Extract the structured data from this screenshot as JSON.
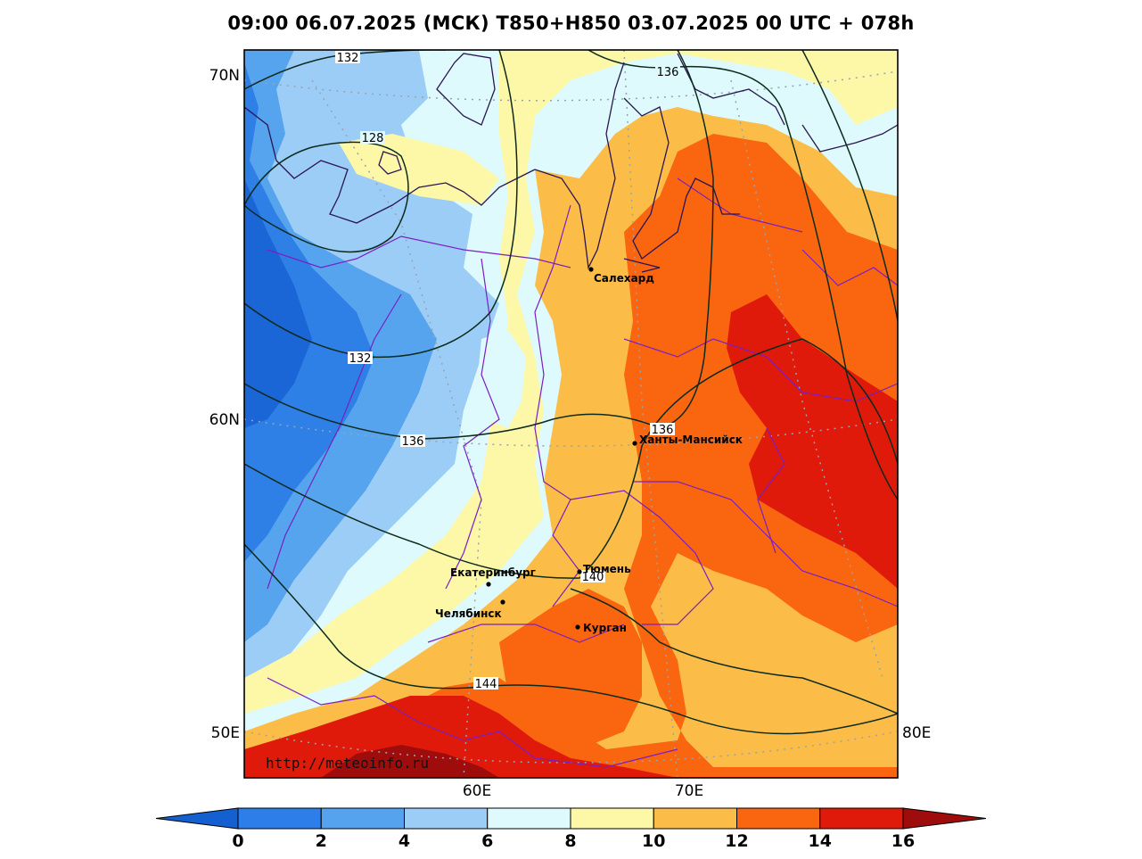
{
  "title": "09:00 06.07.2025 (МСК) T850+H850 03.07.2025 00 UTC + 078h",
  "watermark": "http://meteoinfo.ru",
  "lat_labels": [
    "70N",
    "60N",
    "50E"
  ],
  "lon_labels": [
    "60E",
    "70E",
    "80E"
  ],
  "contour_labels": [
    "132",
    "136",
    "128",
    "132",
    "136",
    "136",
    "140",
    "144"
  ],
  "cities": [
    {
      "name": "Салехард"
    },
    {
      "name": "Ханты-Мансийск"
    },
    {
      "name": "Екатеринбург"
    },
    {
      "name": "Тюмень"
    },
    {
      "name": "Челябинск"
    },
    {
      "name": "Курган"
    }
  ],
  "colorbar": {
    "ticks": [
      "0",
      "2",
      "4",
      "6",
      "8",
      "10",
      "12",
      "14",
      "16"
    ],
    "colors": [
      "#1560d0",
      "#2d7ee8",
      "#55a3ef",
      "#9ccdf6",
      "#defafd",
      "#fdf7a8",
      "#fbbd48",
      "#fa6610",
      "#df1a0a",
      "#9e0c0c"
    ]
  },
  "palette": {
    "blue_dark": "#1a66d6",
    "blue": "#2f80e6",
    "blue_mid": "#56a4ee",
    "blue_light": "#9ccdf6",
    "cyan_light": "#defafd",
    "yellow": "#fdf7a8",
    "orange_light": "#fbbd48",
    "orange": "#fa6610",
    "red": "#df1a0a",
    "dark_red": "#9e0c0c"
  }
}
